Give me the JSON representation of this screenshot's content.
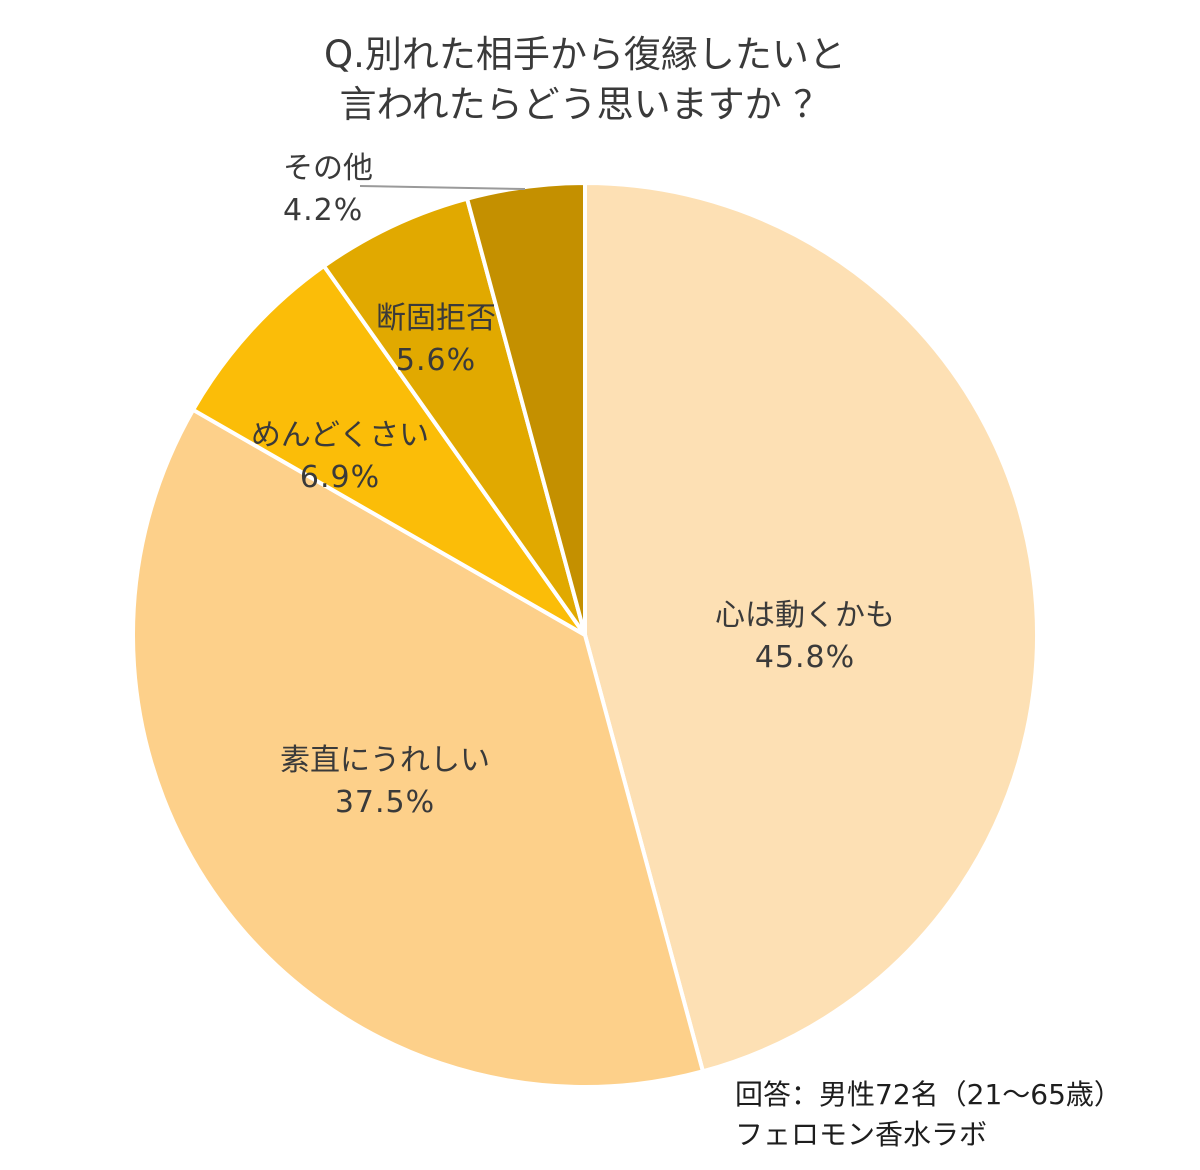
{
  "title_line1": "Q.別れた相手から復縁したいと",
  "title_line2": "言われたらどう思いますか ？",
  "footer": {
    "line1": "回答：男性72名（21～65歳）",
    "line2": "フェロモン香水ラボ"
  },
  "labels": [
    {
      "name": "心は動くかも",
      "pct": "45.8%"
    },
    {
      "name": "素直にうれしい",
      "pct": "37.5%"
    },
    {
      "name": "めんどくさい",
      "pct": "6.9%"
    },
    {
      "name": "断固拒否",
      "pct": "5.6%"
    },
    {
      "name": "その他",
      "pct": "4.2%"
    }
  ],
  "chart_data": {
    "type": "pie",
    "title": "Q.別れた相手から復縁したいと言われたらどう思いますか ？",
    "categories": [
      "心は動くかも",
      "素直にうれしい",
      "めんどくさい",
      "断固拒否",
      "その他"
    ],
    "values": [
      45.8,
      37.5,
      6.9,
      5.6,
      4.2
    ],
    "colors": [
      "#fde0b4",
      "#fdd08a",
      "#fbbd08",
      "#e1a900",
      "#c49000"
    ],
    "start_angle": "12 o'clock, clockwise",
    "annotation": "回答：男性72名（21～65歳） フェロモン香水ラボ"
  }
}
